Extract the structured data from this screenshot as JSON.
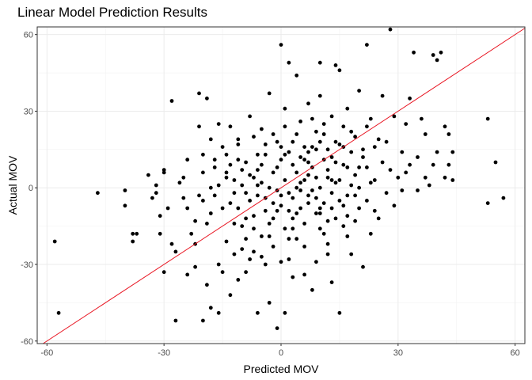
{
  "chart_data": {
    "type": "scatter",
    "title": "Linear Model Prediction Results",
    "xlabel": "Predicted MOV",
    "ylabel": "Actual MOV",
    "xlim": [
      -62.5,
      62.5
    ],
    "ylim": [
      -61,
      63
    ],
    "x_ticks": [
      -60,
      -30,
      0,
      30,
      60
    ],
    "y_ticks": [
      -60,
      -30,
      0,
      30,
      60
    ],
    "x_tick_labels": [
      "-60",
      "-30",
      "0",
      "30",
      "60"
    ],
    "y_tick_labels": [
      "-60",
      "-30",
      "0",
      "30",
      "60"
    ],
    "grid": true,
    "reference_line": {
      "slope": 1,
      "intercept": 0,
      "color": "#e8101d"
    },
    "point_color": "#000000",
    "points": [
      [
        -58,
        -21
      ],
      [
        -57,
        -49
      ],
      [
        -47,
        -2
      ],
      [
        -40,
        -7
      ],
      [
        -40,
        -1
      ],
      [
        -38,
        -18
      ],
      [
        -38,
        -21
      ],
      [
        -37,
        -18
      ],
      [
        -34,
        5
      ],
      [
        -33,
        -4
      ],
      [
        -32,
        -2
      ],
      [
        -32,
        1
      ],
      [
        -31,
        -11
      ],
      [
        -31,
        -18
      ],
      [
        -30,
        6
      ],
      [
        -30,
        7
      ],
      [
        -30,
        -33
      ],
      [
        -29,
        -8
      ],
      [
        -28,
        34
      ],
      [
        -28,
        -22
      ],
      [
        -27,
        -52
      ],
      [
        -27,
        -25
      ],
      [
        -26,
        2
      ],
      [
        -25,
        4
      ],
      [
        -24,
        -34
      ],
      [
        -24,
        11
      ],
      [
        -23,
        -18
      ],
      [
        -22,
        -13
      ],
      [
        -22,
        -31
      ],
      [
        -21,
        37
      ],
      [
        -21,
        24
      ],
      [
        -20,
        -52
      ],
      [
        -20,
        6
      ],
      [
        -20,
        -5
      ],
      [
        -19,
        35
      ],
      [
        -19,
        -38
      ],
      [
        -18,
        -47
      ],
      [
        -18,
        -10
      ],
      [
        -17,
        11
      ],
      [
        -17,
        -3
      ],
      [
        -16,
        -30
      ],
      [
        -16,
        25
      ],
      [
        -16,
        -49
      ],
      [
        -15,
        16
      ],
      [
        -14,
        6
      ],
      [
        -14,
        -21
      ],
      [
        -13,
        -42
      ],
      [
        -13,
        24
      ],
      [
        -12,
        -2
      ],
      [
        -12,
        -14
      ],
      [
        -11,
        -36
      ],
      [
        -11,
        19
      ],
      [
        -10,
        1
      ],
      [
        -10,
        -24
      ],
      [
        -9,
        10
      ],
      [
        -9,
        -33
      ],
      [
        -8,
        28
      ],
      [
        -8,
        -5
      ],
      [
        -7,
        4
      ],
      [
        -7,
        -16
      ],
      [
        -6,
        -49
      ],
      [
        -6,
        13
      ],
      [
        -5,
        2
      ],
      [
        -5,
        -27
      ],
      [
        -4,
        17
      ],
      [
        -4,
        -9
      ],
      [
        -3,
        37
      ],
      [
        -3,
        -45
      ],
      [
        -3,
        0
      ],
      [
        -2,
        21
      ],
      [
        -2,
        -12
      ],
      [
        -1,
        -55
      ],
      [
        -1,
        8
      ],
      [
        0,
        56
      ],
      [
        0,
        -29
      ],
      [
        0,
        -7
      ],
      [
        1,
        13
      ],
      [
        1,
        -49
      ],
      [
        1,
        31
      ],
      [
        2,
        49
      ],
      [
        2,
        -2
      ],
      [
        3,
        18
      ],
      [
        3,
        -35
      ],
      [
        3,
        -16
      ],
      [
        4,
        44
      ],
      [
        4,
        6
      ],
      [
        5,
        -8
      ],
      [
        5,
        26
      ],
      [
        6,
        -23
      ],
      [
        6,
        11
      ],
      [
        7,
        33
      ],
      [
        7,
        -3
      ],
      [
        8,
        16
      ],
      [
        8,
        -40
      ],
      [
        9,
        4
      ],
      [
        9,
        -29
      ],
      [
        10,
        36
      ],
      [
        10,
        49
      ],
      [
        10,
        -10
      ],
      [
        11,
        21
      ],
      [
        11,
        -6
      ],
      [
        12,
        7
      ],
      [
        12,
        -22
      ],
      [
        13,
        28
      ],
      [
        13,
        -37
      ],
      [
        14,
        2
      ],
      [
        14,
        48
      ],
      [
        15,
        -49
      ],
      [
        15,
        17
      ],
      [
        15,
        46
      ],
      [
        16,
        9
      ],
      [
        16,
        -15
      ],
      [
        17,
        31
      ],
      [
        17,
        -3
      ],
      [
        18,
        -26
      ],
      [
        18,
        22
      ],
      [
        19,
        5
      ],
      [
        19,
        -13
      ],
      [
        20,
        38
      ],
      [
        20,
        0
      ],
      [
        21,
        15
      ],
      [
        21,
        -31
      ],
      [
        22,
        56
      ],
      [
        22,
        8
      ],
      [
        23,
        27
      ],
      [
        23,
        -18
      ],
      [
        24,
        -9
      ],
      [
        24,
        3
      ],
      [
        25,
        19
      ],
      [
        25,
        -12
      ],
      [
        26,
        36
      ],
      [
        26,
        10
      ],
      [
        27,
        -2
      ],
      [
        27,
        18
      ],
      [
        28,
        62
      ],
      [
        28,
        7
      ],
      [
        29,
        -7
      ],
      [
        29,
        28
      ],
      [
        30,
        4
      ],
      [
        31,
        14
      ],
      [
        31,
        -1
      ],
      [
        32,
        25
      ],
      [
        32,
        6
      ],
      [
        33,
        35
      ],
      [
        33,
        9
      ],
      [
        34,
        53
      ],
      [
        35,
        -1
      ],
      [
        35,
        12
      ],
      [
        36,
        27
      ],
      [
        37,
        4
      ],
      [
        37,
        21
      ],
      [
        38,
        1
      ],
      [
        39,
        52
      ],
      [
        39,
        9
      ],
      [
        40,
        50
      ],
      [
        40,
        14
      ],
      [
        41,
        53
      ],
      [
        42,
        24
      ],
      [
        42,
        4
      ],
      [
        43,
        21
      ],
      [
        43,
        9
      ],
      [
        44,
        3
      ],
      [
        44,
        14
      ],
      [
        53,
        27
      ],
      [
        53,
        -6
      ],
      [
        55,
        10
      ],
      [
        57,
        -4
      ],
      [
        -12,
        3
      ],
      [
        -15,
        -8
      ],
      [
        -9,
        -20
      ],
      [
        -6,
        7
      ],
      [
        -3,
        -14
      ],
      [
        1,
        3
      ],
      [
        4,
        -20
      ],
      [
        7,
        10
      ],
      [
        10,
        0
      ],
      [
        13,
        -8
      ],
      [
        -18,
        0
      ],
      [
        -20,
        13
      ],
      [
        -11,
        17
      ],
      [
        -7,
        -11
      ],
      [
        -2,
        6
      ],
      [
        3,
        -4
      ],
      [
        6,
        16
      ],
      [
        9,
        22
      ],
      [
        12,
        15
      ],
      [
        15,
        3
      ],
      [
        -13,
        -6
      ],
      [
        -8,
        -28
      ],
      [
        -4,
        13
      ],
      [
        0,
        -3
      ],
      [
        3,
        9
      ],
      [
        6,
        -14
      ],
      [
        9,
        -4
      ],
      [
        12,
        -26
      ],
      [
        -16,
        1
      ],
      [
        -10,
        7
      ],
      [
        -5,
        -19
      ],
      [
        -1,
        18
      ],
      [
        2,
        -9
      ],
      [
        5,
        12
      ],
      [
        8,
        -1
      ],
      [
        11,
        25
      ],
      [
        14,
        -12
      ],
      [
        17,
        8
      ],
      [
        -14,
        13
      ],
      [
        -11,
        -8
      ],
      [
        -6,
        -3
      ],
      [
        -2,
        -23
      ],
      [
        1,
        -16
      ],
      [
        4,
        21
      ],
      [
        7,
        -6
      ],
      [
        10,
        -16
      ],
      [
        13,
        12
      ],
      [
        16,
        -7
      ],
      [
        19,
        20
      ],
      [
        22,
        -5
      ],
      [
        -19,
        -14
      ],
      [
        -17,
        8
      ],
      [
        -7,
        20
      ],
      [
        -1,
        -9
      ],
      [
        2,
        14
      ],
      [
        5,
        -1
      ],
      [
        8,
        27
      ],
      [
        11,
        -18
      ],
      [
        14,
        10
      ],
      [
        18,
        1
      ],
      [
        21,
        12
      ],
      [
        24,
        16
      ],
      [
        -24,
        -8
      ],
      [
        -21,
        -3
      ],
      [
        -9,
        -12
      ],
      [
        -4,
        -4
      ],
      [
        0,
        11
      ],
      [
        4,
        -10
      ],
      [
        7,
        5
      ],
      [
        10,
        18
      ],
      [
        13,
        -2
      ],
      [
        16,
        24
      ],
      [
        -13,
        9
      ],
      [
        -10,
        -15
      ],
      [
        -6,
        1
      ],
      [
        -3,
        -19
      ],
      [
        1,
        24
      ],
      [
        4,
        0
      ],
      [
        7,
        14
      ],
      [
        10,
        -8
      ],
      [
        12,
        4
      ],
      [
        15,
        -5
      ],
      [
        18,
        14
      ],
      [
        20,
        -8
      ],
      [
        -25,
        -4
      ],
      [
        -18,
        19
      ],
      [
        -12,
        -26
      ],
      [
        -8,
        5
      ],
      [
        -5,
        9
      ],
      [
        -2,
        -6
      ],
      [
        2,
        -20
      ],
      [
        5,
        2
      ],
      [
        8,
        8
      ],
      [
        11,
        11
      ],
      [
        14,
        18
      ],
      [
        17,
        -19
      ],
      [
        20,
        8
      ],
      [
        23,
        2
      ],
      [
        -15,
        -33
      ],
      [
        -11,
        11
      ],
      [
        -7,
        -25
      ],
      [
        -4,
        -30
      ],
      [
        0,
        16
      ],
      [
        3,
        -12
      ],
      [
        6,
        -34
      ],
      [
        9,
        15
      ],
      [
        12,
        -13
      ],
      [
        16,
        16
      ],
      [
        19,
        -3
      ],
      [
        22,
        24
      ],
      [
        -22,
        -22
      ],
      [
        -14,
        4
      ],
      [
        -9,
        -2
      ],
      [
        -5,
        23
      ],
      [
        -1,
        -1
      ],
      [
        2,
        -28
      ],
      [
        6,
        3
      ],
      [
        9,
        -10
      ],
      [
        13,
        3
      ],
      [
        17,
        -11
      ]
    ]
  }
}
